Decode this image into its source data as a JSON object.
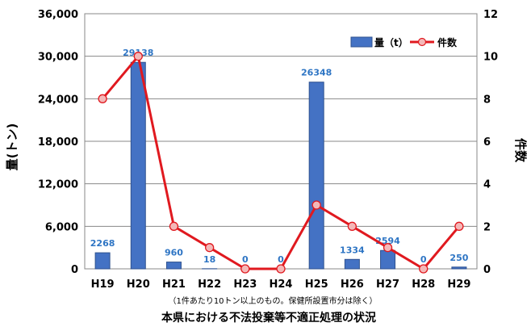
{
  "chart_data": {
    "type": "bar",
    "categories": [
      "H19",
      "H20",
      "H21",
      "H22",
      "H23",
      "H24",
      "H25",
      "H26",
      "H27",
      "H28",
      "H29"
    ],
    "series": [
      {
        "name": "量（t）",
        "type": "bar",
        "axis": "left",
        "color": "#4472c4",
        "values": [
          2268,
          29138,
          960,
          18,
          0,
          0,
          26348,
          1334,
          2594,
          0,
          250
        ],
        "labels": [
          "2268",
          "29138",
          "960",
          "18",
          "0",
          "0",
          "26348",
          "1334",
          "2594",
          "0",
          "250"
        ]
      },
      {
        "name": "件数",
        "type": "line",
        "axis": "right",
        "color": "#e0191f",
        "marker_fill": "#f4b8b8",
        "values": [
          8,
          10,
          2,
          1,
          0,
          0,
          3,
          2,
          1,
          0,
          2
        ]
      }
    ],
    "ylabel_left": "量(トン)",
    "ylabel_right": "件数",
    "ylim_left": [
      0,
      36000
    ],
    "ylim_right": [
      0,
      12
    ],
    "yticks_left": [
      "0",
      "6,000",
      "12,000",
      "18,000",
      "24,000",
      "30,000",
      "36,000"
    ],
    "yticks_right": [
      "0",
      "2",
      "4",
      "6",
      "8",
      "10",
      "12"
    ],
    "grid": true,
    "legend_position": "top-right",
    "note": "（1件あたり10トン以上のもの。保健所設置市分は除く）",
    "caption": "本県における不法投棄等不適正処理の状況"
  }
}
